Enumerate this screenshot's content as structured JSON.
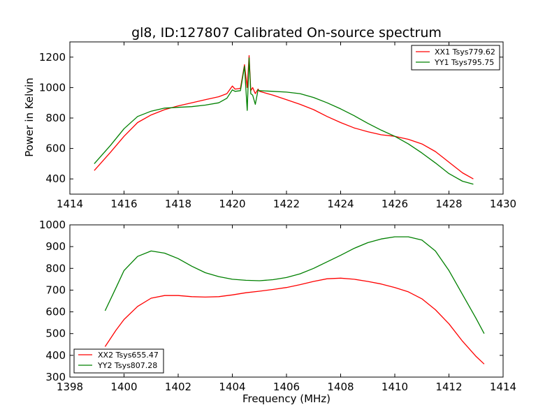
{
  "chart_data": [
    {
      "type": "line",
      "title": "gl8, ID:127807 Calibrated On-source spectrum",
      "xlabel": "",
      "ylabel": "Power in Kelvin",
      "xlim": [
        1414,
        1430
      ],
      "ylim": [
        300,
        1300
      ],
      "xticks": [
        1414,
        1416,
        1418,
        1420,
        1422,
        1424,
        1426,
        1428,
        1430
      ],
      "yticks": [
        400,
        600,
        800,
        1000,
        1200
      ],
      "legend_position": "top-right",
      "grid": false,
      "series": [
        {
          "name": "XX1 Tsys779.62",
          "color": "#ff0000",
          "x": [
            1414.9,
            1415.5,
            1416.0,
            1416.5,
            1417.0,
            1417.5,
            1418.0,
            1418.5,
            1419.0,
            1419.5,
            1419.8,
            1420.0,
            1420.1,
            1420.3,
            1420.45,
            1420.55,
            1420.62,
            1420.68,
            1420.75,
            1420.85,
            1420.95,
            1421.0,
            1421.5,
            1422.0,
            1422.5,
            1423.0,
            1423.5,
            1424.0,
            1424.5,
            1425.0,
            1425.5,
            1426.0,
            1426.5,
            1427.0,
            1427.5,
            1428.0,
            1428.5,
            1428.9
          ],
          "y": [
            455,
            575,
            680,
            770,
            820,
            855,
            880,
            900,
            920,
            940,
            960,
            1010,
            990,
            995,
            1150,
            1000,
            1210,
            980,
            1000,
            960,
            990,
            975,
            950,
            920,
            890,
            855,
            810,
            770,
            735,
            710,
            690,
            680,
            660,
            630,
            580,
            510,
            440,
            400
          ]
        },
        {
          "name": "YY1 Tsys795.75",
          "color": "#008000",
          "x": [
            1414.9,
            1415.5,
            1416.0,
            1416.5,
            1417.0,
            1417.5,
            1418.0,
            1418.5,
            1419.0,
            1419.5,
            1419.8,
            1420.0,
            1420.1,
            1420.3,
            1420.45,
            1420.55,
            1420.62,
            1420.68,
            1420.75,
            1420.85,
            1420.95,
            1421.0,
            1421.5,
            1422.0,
            1422.5,
            1423.0,
            1423.5,
            1424.0,
            1424.5,
            1425.0,
            1425.5,
            1426.0,
            1426.5,
            1427.0,
            1427.5,
            1428.0,
            1428.5,
            1428.9
          ],
          "y": [
            500,
            620,
            730,
            810,
            845,
            865,
            870,
            875,
            885,
            900,
            930,
            985,
            975,
            980,
            1140,
            850,
            1195,
            960,
            950,
            890,
            985,
            980,
            975,
            970,
            960,
            935,
            900,
            860,
            815,
            765,
            720,
            680,
            630,
            570,
            505,
            435,
            385,
            365
          ]
        }
      ]
    },
    {
      "type": "line",
      "title": "",
      "xlabel": "Frequency (MHz)",
      "ylabel": "",
      "xlim": [
        1398,
        1414
      ],
      "ylim": [
        300,
        1000
      ],
      "xticks": [
        1398,
        1400,
        1402,
        1404,
        1406,
        1408,
        1410,
        1412,
        1414
      ],
      "yticks": [
        300,
        400,
        500,
        600,
        700,
        800,
        900,
        1000
      ],
      "legend_position": "bottom-left",
      "grid": false,
      "series": [
        {
          "name": "XX2 Tsys655.47",
          "color": "#ff0000",
          "x": [
            1399.3,
            1399.7,
            1400.0,
            1400.5,
            1401.0,
            1401.5,
            1402.0,
            1402.5,
            1403.0,
            1403.5,
            1404.0,
            1404.5,
            1405.0,
            1405.5,
            1406.0,
            1406.5,
            1407.0,
            1407.5,
            1408.0,
            1408.5,
            1409.0,
            1409.5,
            1410.0,
            1410.5,
            1411.0,
            1411.5,
            1412.0,
            1412.5,
            1413.0,
            1413.3
          ],
          "y": [
            440,
            515,
            565,
            625,
            663,
            675,
            675,
            670,
            668,
            670,
            678,
            688,
            695,
            703,
            712,
            725,
            740,
            752,
            755,
            750,
            740,
            728,
            712,
            692,
            660,
            610,
            545,
            465,
            395,
            360
          ]
        },
        {
          "name": "YY2 Tsys807.28",
          "color": "#008000",
          "x": [
            1399.3,
            1399.7,
            1400.0,
            1400.5,
            1401.0,
            1401.5,
            1402.0,
            1402.5,
            1403.0,
            1403.5,
            1404.0,
            1404.5,
            1405.0,
            1405.5,
            1406.0,
            1406.5,
            1407.0,
            1407.5,
            1408.0,
            1408.5,
            1409.0,
            1409.5,
            1410.0,
            1410.5,
            1411.0,
            1411.5,
            1412.0,
            1412.5,
            1413.0,
            1413.3
          ],
          "y": [
            605,
            710,
            790,
            855,
            880,
            870,
            845,
            810,
            780,
            762,
            750,
            745,
            743,
            748,
            758,
            775,
            800,
            830,
            860,
            892,
            918,
            935,
            945,
            945,
            930,
            880,
            790,
            680,
            570,
            500
          ]
        }
      ]
    }
  ]
}
